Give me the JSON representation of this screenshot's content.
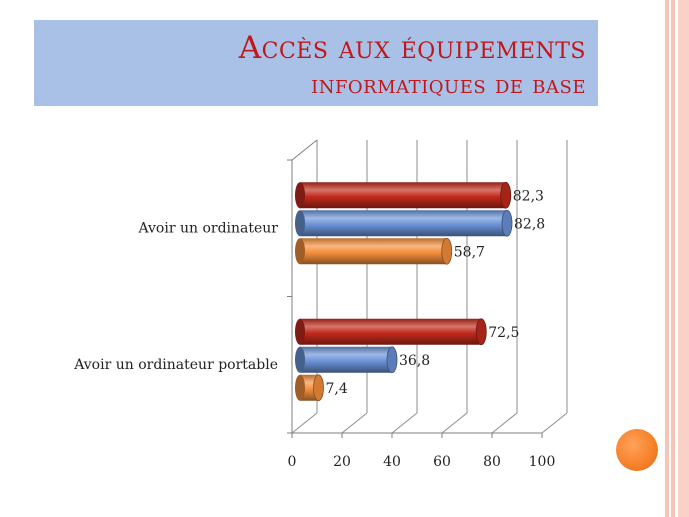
{
  "slide": {
    "title_line1": "Accès aux équipements",
    "title_line2": "informatiques de base"
  },
  "colors": {
    "title": "#c0171b",
    "band": "#a9c1e6",
    "series": [
      "#c22a1c",
      "#6b93d8",
      "#f5903c"
    ],
    "stripe": "#f7c4b6",
    "decoration": "#f7822c"
  },
  "chart_data": {
    "type": "bar",
    "orientation": "horizontal",
    "style": "3d-cylinder",
    "categories": [
      "Avoir un ordinateur",
      "Avoir un ordinateur portable"
    ],
    "series": [
      {
        "values": [
          82.3,
          72.5
        ],
        "labels": [
          "82,3",
          "72,5"
        ],
        "color": "#c22a1c"
      },
      {
        "values": [
          82.8,
          36.8
        ],
        "labels": [
          "82,8",
          "36,8"
        ],
        "color": "#6b93d8"
      },
      {
        "values": [
          58.7,
          7.4
        ],
        "labels": [
          "58,7",
          "7,4"
        ],
        "color": "#f5903c"
      }
    ],
    "xlim": [
      0,
      100
    ],
    "xticks": [
      "0",
      "20",
      "40",
      "60",
      "80",
      "100"
    ],
    "grid": true,
    "legend": "none"
  }
}
